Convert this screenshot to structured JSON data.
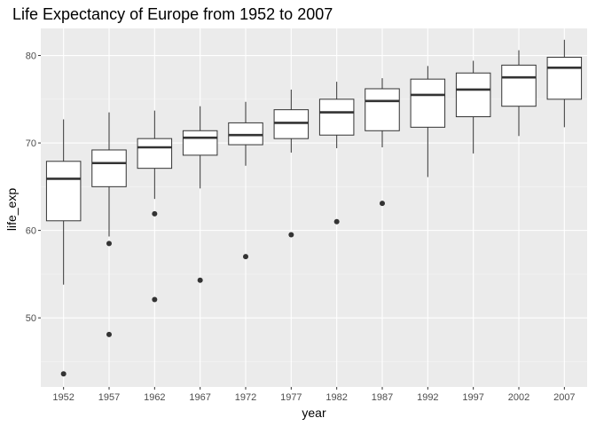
{
  "chart_data": {
    "type": "boxplot",
    "title": "Life Expectancy of Europe from 1952 to 2007",
    "xlabel": "year",
    "ylabel": "life_exp",
    "ylim": [
      42.1,
      83.1
    ],
    "yticks": [
      50,
      60,
      70,
      80
    ],
    "grid": true,
    "colors": {
      "panel": "#ebebeb",
      "grid_major": "#ffffff",
      "box_fill": "#ffffff",
      "box_stroke": "#333333",
      "median": "#333333",
      "outlier": "#333333"
    },
    "categories": [
      "1952",
      "1957",
      "1962",
      "1967",
      "1972",
      "1977",
      "1982",
      "1987",
      "1992",
      "1997",
      "2002",
      "2007"
    ],
    "boxes": [
      {
        "x": "1952",
        "lower_whisker": 53.8,
        "q1": 61.1,
        "median": 65.9,
        "q3": 67.9,
        "upper_whisker": 72.7,
        "outliers": [
          43.6
        ]
      },
      {
        "x": "1957",
        "lower_whisker": 59.3,
        "q1": 65.0,
        "median": 67.7,
        "q3": 69.2,
        "upper_whisker": 73.5,
        "outliers": [
          58.5,
          48.1
        ]
      },
      {
        "x": "1962",
        "lower_whisker": 63.6,
        "q1": 67.1,
        "median": 69.5,
        "q3": 70.5,
        "upper_whisker": 73.7,
        "outliers": [
          61.9,
          52.1
        ]
      },
      {
        "x": "1967",
        "lower_whisker": 64.8,
        "q1": 68.6,
        "median": 70.6,
        "q3": 71.4,
        "upper_whisker": 74.2,
        "outliers": [
          54.3
        ]
      },
      {
        "x": "1972",
        "lower_whisker": 67.4,
        "q1": 69.8,
        "median": 70.9,
        "q3": 72.3,
        "upper_whisker": 74.7,
        "outliers": [
          57.0
        ]
      },
      {
        "x": "1977",
        "lower_whisker": 68.9,
        "q1": 70.5,
        "median": 72.3,
        "q3": 73.8,
        "upper_whisker": 76.1,
        "outliers": [
          59.5
        ]
      },
      {
        "x": "1982",
        "lower_whisker": 69.4,
        "q1": 70.9,
        "median": 73.5,
        "q3": 75.0,
        "upper_whisker": 77.0,
        "outliers": [
          61.0
        ]
      },
      {
        "x": "1987",
        "lower_whisker": 69.5,
        "q1": 71.4,
        "median": 74.8,
        "q3": 76.2,
        "upper_whisker": 77.4,
        "outliers": [
          63.1
        ]
      },
      {
        "x": "1992",
        "lower_whisker": 66.1,
        "q1": 71.8,
        "median": 75.5,
        "q3": 77.3,
        "upper_whisker": 78.8,
        "outliers": []
      },
      {
        "x": "1997",
        "lower_whisker": 68.8,
        "q1": 73.0,
        "median": 76.1,
        "q3": 78.0,
        "upper_whisker": 79.4,
        "outliers": []
      },
      {
        "x": "2002",
        "lower_whisker": 70.8,
        "q1": 74.2,
        "median": 77.5,
        "q3": 78.9,
        "upper_whisker": 80.6,
        "outliers": []
      },
      {
        "x": "2007",
        "lower_whisker": 71.8,
        "q1": 75.0,
        "median": 78.6,
        "q3": 79.8,
        "upper_whisker": 81.8,
        "outliers": []
      }
    ]
  }
}
